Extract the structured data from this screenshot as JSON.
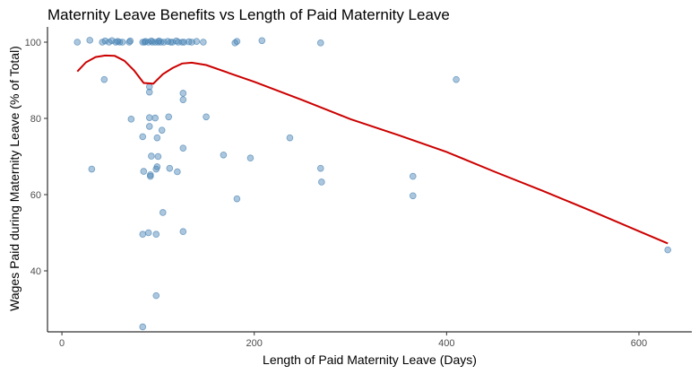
{
  "chart_data": {
    "type": "scatter",
    "title": "Maternity Leave Benefits vs Length of Paid Maternity Leave",
    "xlabel": "Length of Paid Maternity Leave (Days)",
    "ylabel": "Wages Paid during Maternity Leave (% of Total)",
    "xlim": [
      -15,
      655
    ],
    "ylim": [
      24,
      104
    ],
    "xticks": [
      0,
      200,
      400,
      600
    ],
    "yticks": [
      40,
      60,
      80,
      100
    ],
    "grid": false,
    "point_color": "#4682B4",
    "line_color": "#CC0000",
    "points": [
      {
        "x": 16,
        "y": 100
      },
      {
        "x": 29,
        "y": 100.5
      },
      {
        "x": 31,
        "y": 66.7
      },
      {
        "x": 42,
        "y": 100
      },
      {
        "x": 44,
        "y": 90.2
      },
      {
        "x": 45,
        "y": 100.3
      },
      {
        "x": 49,
        "y": 100
      },
      {
        "x": 52,
        "y": 100.4
      },
      {
        "x": 56,
        "y": 100
      },
      {
        "x": 58,
        "y": 100.2
      },
      {
        "x": 60,
        "y": 100
      },
      {
        "x": 63,
        "y": 100
      },
      {
        "x": 70,
        "y": 100
      },
      {
        "x": 71,
        "y": 100.3
      },
      {
        "x": 72,
        "y": 79.8
      },
      {
        "x": 84,
        "y": 75.2
      },
      {
        "x": 84,
        "y": 49.6
      },
      {
        "x": 84,
        "y": 25.3
      },
      {
        "x": 84,
        "y": 100
      },
      {
        "x": 85,
        "y": 66.1
      },
      {
        "x": 86,
        "y": 100
      },
      {
        "x": 87,
        "y": 100.2
      },
      {
        "x": 90,
        "y": 100
      },
      {
        "x": 90,
        "y": 50
      },
      {
        "x": 91,
        "y": 88.3
      },
      {
        "x": 91,
        "y": 86.9
      },
      {
        "x": 91,
        "y": 80.2
      },
      {
        "x": 91,
        "y": 77.9
      },
      {
        "x": 92,
        "y": 65.2
      },
      {
        "x": 92,
        "y": 64.8
      },
      {
        "x": 93,
        "y": 100.3
      },
      {
        "x": 93,
        "y": 70.1
      },
      {
        "x": 94,
        "y": 100
      },
      {
        "x": 97,
        "y": 100
      },
      {
        "x": 97,
        "y": 80.1
      },
      {
        "x": 98,
        "y": 66.7
      },
      {
        "x": 98,
        "y": 49.6
      },
      {
        "x": 98,
        "y": 33.5
      },
      {
        "x": 99,
        "y": 74.9
      },
      {
        "x": 99,
        "y": 67.3
      },
      {
        "x": 100,
        "y": 100
      },
      {
        "x": 100,
        "y": 70
      },
      {
        "x": 101,
        "y": 100.3
      },
      {
        "x": 103,
        "y": 100
      },
      {
        "x": 104,
        "y": 76.9
      },
      {
        "x": 105,
        "y": 55.3
      },
      {
        "x": 106,
        "y": 100
      },
      {
        "x": 110,
        "y": 100.2
      },
      {
        "x": 111,
        "y": 80.4
      },
      {
        "x": 112,
        "y": 66.9
      },
      {
        "x": 113,
        "y": 100
      },
      {
        "x": 115,
        "y": 100
      },
      {
        "x": 119,
        "y": 100.3
      },
      {
        "x": 120,
        "y": 66
      },
      {
        "x": 121,
        "y": 100
      },
      {
        "x": 125,
        "y": 100
      },
      {
        "x": 126,
        "y": 86.6
      },
      {
        "x": 126,
        "y": 84.9
      },
      {
        "x": 126,
        "y": 72.2
      },
      {
        "x": 126,
        "y": 50.3
      },
      {
        "x": 127,
        "y": 100
      },
      {
        "x": 132,
        "y": 100.1
      },
      {
        "x": 135,
        "y": 100
      },
      {
        "x": 140,
        "y": 100.2
      },
      {
        "x": 147,
        "y": 100
      },
      {
        "x": 150,
        "y": 80.4
      },
      {
        "x": 168,
        "y": 70.4
      },
      {
        "x": 180,
        "y": 99.8
      },
      {
        "x": 182,
        "y": 100.2
      },
      {
        "x": 182,
        "y": 58.9
      },
      {
        "x": 196,
        "y": 69.6
      },
      {
        "x": 208,
        "y": 100.4
      },
      {
        "x": 237,
        "y": 74.9
      },
      {
        "x": 269,
        "y": 99.8
      },
      {
        "x": 269,
        "y": 66.9
      },
      {
        "x": 270,
        "y": 63.3
      },
      {
        "x": 365,
        "y": 64.8
      },
      {
        "x": 365,
        "y": 59.7
      },
      {
        "x": 410,
        "y": 90.2
      },
      {
        "x": 630,
        "y": 45.5
      }
    ],
    "trend_line": [
      {
        "x": 16,
        "y": 92.3
      },
      {
        "x": 25,
        "y": 94.7
      },
      {
        "x": 35,
        "y": 96.1
      },
      {
        "x": 45,
        "y": 96.5
      },
      {
        "x": 55,
        "y": 96.4
      },
      {
        "x": 65,
        "y": 95.1
      },
      {
        "x": 75,
        "y": 92.6
      },
      {
        "x": 85,
        "y": 89.3
      },
      {
        "x": 95,
        "y": 89.1
      },
      {
        "x": 105,
        "y": 91.6
      },
      {
        "x": 115,
        "y": 93.2
      },
      {
        "x": 125,
        "y": 94.4
      },
      {
        "x": 135,
        "y": 94.6
      },
      {
        "x": 150,
        "y": 94
      },
      {
        "x": 175,
        "y": 91.8
      },
      {
        "x": 200,
        "y": 89.6
      },
      {
        "x": 250,
        "y": 84.8
      },
      {
        "x": 300,
        "y": 79.8
      },
      {
        "x": 350,
        "y": 75.6
      },
      {
        "x": 400,
        "y": 71.2
      },
      {
        "x": 450,
        "y": 66
      },
      {
        "x": 500,
        "y": 61
      },
      {
        "x": 550,
        "y": 55.8
      },
      {
        "x": 600,
        "y": 50.4
      },
      {
        "x": 630,
        "y": 47.2
      }
    ]
  }
}
